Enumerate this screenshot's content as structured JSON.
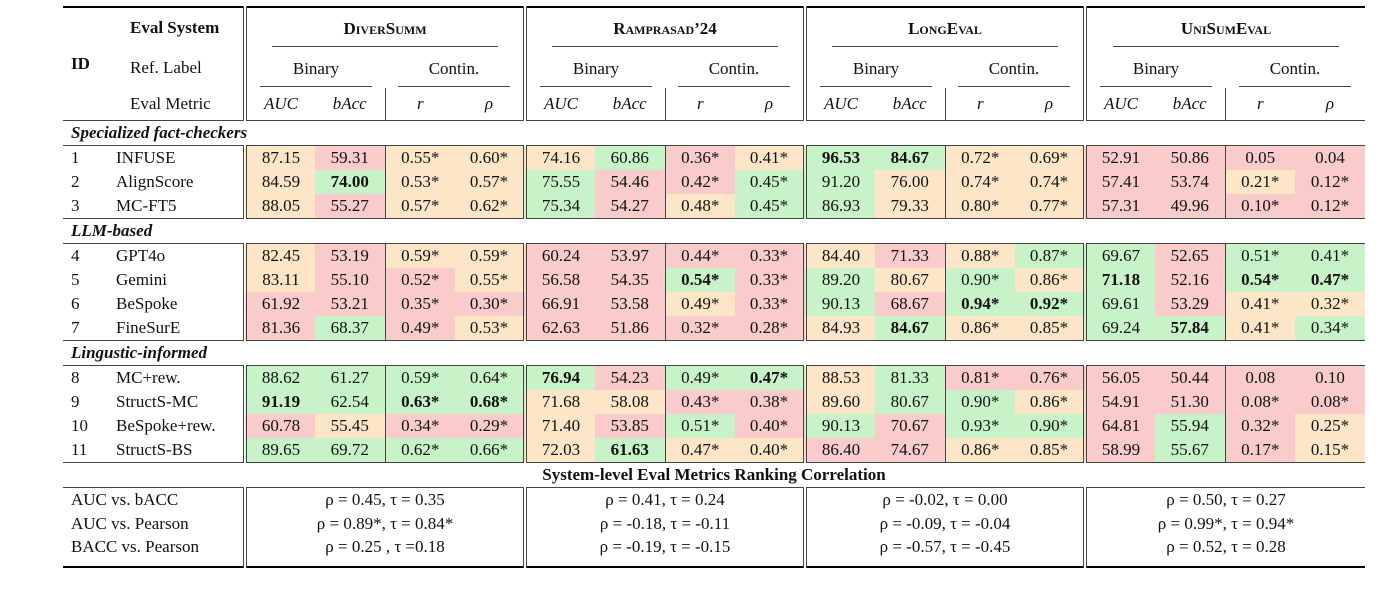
{
  "header": {
    "id": "ID",
    "eval_system": "Eval System",
    "ref_label": "Ref. Label",
    "eval_metric": "Eval Metric",
    "datasets": [
      "DiverSumm",
      "Ramprasad’24",
      "LongEval",
      "UniSumEval"
    ],
    "ref_labels": [
      "Binary",
      "Contin."
    ],
    "metrics": [
      "AUC",
      "bAcc",
      "r",
      "ρ"
    ]
  },
  "shade_colors": {
    "g": "#c8f2c8",
    "o": "#fde5c8",
    "r": "#f9cbcb"
  },
  "sections": [
    {
      "title": "Specialized fact-checkers",
      "rows": [
        {
          "id": "1",
          "system": "INFUSE",
          "cells": [
            "87.15",
            "59.31",
            "0.55*",
            "0.60*",
            "74.16",
            "60.86",
            "0.36*",
            "0.41*",
            "96.53",
            "84.67",
            "0.72*",
            "0.69*",
            "52.91",
            "50.86",
            "0.05",
            "0.04"
          ],
          "shade": "oroo ogro ggoo rrrr",
          "bold": [
            8,
            9
          ]
        },
        {
          "id": "2",
          "system": "AlignScore",
          "cells": [
            "84.59",
            "74.00",
            "0.53*",
            "0.57*",
            "75.55",
            "54.46",
            "0.42*",
            "0.45*",
            "91.20",
            "76.00",
            "0.74*",
            "0.74*",
            "57.41",
            "53.74",
            "0.21*",
            "0.12*"
          ],
          "shade": "ogoo grrg gooo rror",
          "bold": [
            1
          ]
        },
        {
          "id": "3",
          "system": "MC-FT5",
          "cells": [
            "88.05",
            "55.27",
            "0.57*",
            "0.62*",
            "75.34",
            "54.27",
            "0.48*",
            "0.45*",
            "86.93",
            "79.33",
            "0.80*",
            "0.77*",
            "57.31",
            "49.96",
            "0.10*",
            "0.12*"
          ],
          "shade": "oroo grog gooo rrrr",
          "bold": []
        }
      ]
    },
    {
      "title": "LLM-based",
      "rows": [
        {
          "id": "4",
          "system": "GPT4o",
          "cells": [
            "82.45",
            "53.19",
            "0.59*",
            "0.59*",
            "60.24",
            "53.97",
            "0.44*",
            "0.33*",
            "84.40",
            "71.33",
            "0.88*",
            "0.87*",
            "69.67",
            "52.65",
            "0.51*",
            "0.41*"
          ],
          "shade": "oroo rrrr orog grgg",
          "bold": []
        },
        {
          "id": "5",
          "system": "Gemini",
          "cells": [
            "83.11",
            "55.10",
            "0.52*",
            "0.55*",
            "56.58",
            "54.35",
            "0.54*",
            "0.33*",
            "89.20",
            "80.67",
            "0.90*",
            "0.86*",
            "71.18",
            "52.16",
            "0.54*",
            "0.47*"
          ],
          "shade": "orro rrgr gogo grgg",
          "bold": [
            6,
            12,
            14,
            15
          ]
        },
        {
          "id": "6",
          "system": "BeSpoke",
          "cells": [
            "61.92",
            "53.21",
            "0.35*",
            "0.30*",
            "66.91",
            "53.58",
            "0.49*",
            "0.33*",
            "90.13",
            "68.67",
            "0.94*",
            "0.92*",
            "69.61",
            "53.29",
            "0.41*",
            "0.32*"
          ],
          "shade": "rrrr rror grgg groo",
          "bold": [
            10,
            11
          ]
        },
        {
          "id": "7",
          "system": "FineSurE",
          "cells": [
            "81.36",
            "68.37",
            "0.49*",
            "0.53*",
            "62.63",
            "51.86",
            "0.32*",
            "0.28*",
            "84.93",
            "84.67",
            "0.86*",
            "0.85*",
            "69.24",
            "57.84",
            "0.41*",
            "0.34*"
          ],
          "shade": "rgro rrrr ogoo ggog",
          "bold": [
            9,
            13
          ]
        }
      ]
    },
    {
      "title": "Lingustic-informed",
      "rows": [
        {
          "id": "8",
          "system": "MC+rew.",
          "cells": [
            "88.62",
            "61.27",
            "0.59*",
            "0.64*",
            "76.94",
            "54.23",
            "0.49*",
            "0.47*",
            "88.53",
            "81.33",
            "0.81*",
            "0.76*",
            "56.05",
            "50.44",
            "0.08",
            "0.10"
          ],
          "shade": "gggg grgg ogrr rrrr",
          "bold": [
            4,
            7
          ]
        },
        {
          "id": "9",
          "system": "StructS-MC",
          "cells": [
            "91.19",
            "62.54",
            "0.63*",
            "0.68*",
            "71.68",
            "58.08",
            "0.43*",
            "0.38*",
            "89.60",
            "80.67",
            "0.90*",
            "0.86*",
            "54.91",
            "51.30",
            "0.08*",
            "0.08*"
          ],
          "shade": "gggg oorr oggo rrrr",
          "bold": [
            0,
            2,
            3
          ]
        },
        {
          "id": "10",
          "system": "BeSpoke+rew.",
          "cells": [
            "60.78",
            "55.45",
            "0.34*",
            "0.29*",
            "71.40",
            "53.85",
            "0.51*",
            "0.40*",
            "90.13",
            "70.67",
            "0.93*",
            "0.90*",
            "64.81",
            "55.94",
            "0.32*",
            "0.25*"
          ],
          "shade": "rorr orgr grgg rgro",
          "bold": []
        },
        {
          "id": "11",
          "system": "StructS-BS",
          "cells": [
            "89.65",
            "69.72",
            "0.62*",
            "0.66*",
            "72.03",
            "61.63",
            "0.47*",
            "0.40*",
            "86.40",
            "74.67",
            "0.86*",
            "0.85*",
            "58.99",
            "55.67",
            "0.17*",
            "0.15*"
          ],
          "shade": "gggg ogoo rroo rgro",
          "bold": [
            5
          ]
        }
      ]
    }
  ],
  "correlation": {
    "title": "System-level Eval Metrics Ranking Correlation",
    "rows": [
      {
        "label": "AUC vs. bACC",
        "values": [
          "ρ = 0.45, τ = 0.35",
          "ρ = 0.41, τ = 0.24",
          "ρ = -0.02, τ = 0.00",
          "ρ = 0.50, τ = 0.27"
        ]
      },
      {
        "label": "AUC vs. Pearson",
        "values": [
          "ρ = 0.89*, τ = 0.84*",
          "ρ = -0.18, τ = -0.11",
          "ρ = -0.09, τ = -0.04",
          "ρ = 0.99*, τ = 0.94*"
        ]
      },
      {
        "label": "BACC vs. Pearson",
        "values": [
          "ρ = 0.25 , τ =0.18",
          "ρ = -0.19, τ = -0.15",
          "ρ = -0.57, τ = -0.45",
          "ρ = 0.52, τ = 0.28"
        ]
      }
    ]
  }
}
